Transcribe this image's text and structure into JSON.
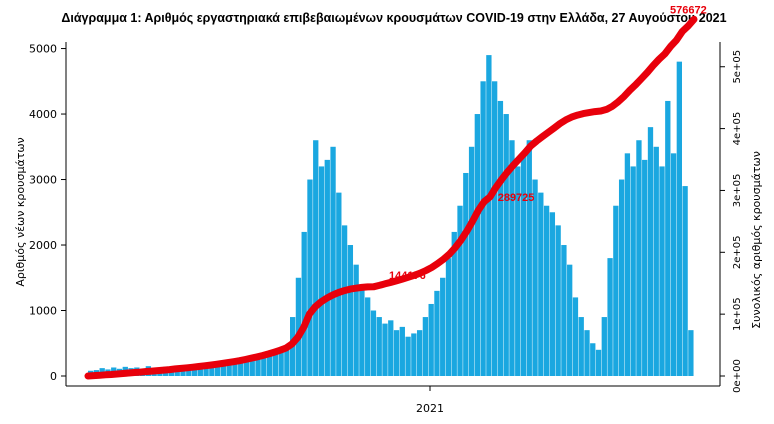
{
  "chart_data": {
    "type": "bar+line",
    "title": "Διάγραμμα 1: Αριθμός εργαστηριακά επιβεβαιωμένων κρουσμάτων COVID-19 στην Ελλάδα, 27 Αυγούστου 2021",
    "ylabel_left": "Αριθμός νέων κρουσμάτων",
    "ylabel_right": "Συνολικός αριθμός κρουσμάτων",
    "x_tick_label": "2021",
    "ylim_left": [
      0,
      5100
    ],
    "ylim_right": [
      0,
      540000
    ],
    "yticks_left": [
      "0",
      "1000",
      "2000",
      "3000",
      "4000",
      "5000"
    ],
    "yticks_right": [
      "0e+00",
      "1e+05",
      "2e+05",
      "3e+05",
      "4e+05",
      "5e+05"
    ],
    "bar_color": "#1aa7e0",
    "line_color": "#e8000b",
    "daily_new_cases": [
      80,
      90,
      120,
      100,
      130,
      110,
      140,
      120,
      130,
      110,
      150,
      120,
      130,
      140,
      120,
      150,
      130,
      140,
      160,
      150,
      170,
      160,
      180,
      190,
      200,
      220,
      230,
      250,
      280,
      300,
      320,
      350,
      380,
      420,
      470,
      900,
      1500,
      2200,
      3000,
      3600,
      3200,
      3300,
      3500,
      2800,
      2300,
      2000,
      1700,
      1400,
      1200,
      1000,
      900,
      800,
      850,
      700,
      750,
      600,
      650,
      700,
      900,
      1100,
      1300,
      1500,
      1800,
      2200,
      2600,
      3100,
      3500,
      4000,
      4500,
      4900,
      4500,
      4200,
      4000,
      3600,
      3200,
      3400,
      3600,
      3000,
      2800,
      2600,
      2500,
      2300,
      2000,
      1700,
      1200,
      900,
      700,
      500,
      400,
      900,
      1800,
      2600,
      3000,
      3400,
      3200,
      3600,
      3300,
      3800,
      3500,
      3200,
      4200,
      3400,
      4800,
      2900,
      700
    ],
    "cumulative_points": [
      {
        "label": "144176",
        "value": 144176,
        "at_bar": 52
      },
      {
        "label": "289725",
        "value": 289725,
        "at_bar": 71
      },
      {
        "label": "576672",
        "value": 576672,
        "at_bar": 104
      }
    ],
    "cumulative_curve": [
      0,
      600,
      1200,
      1900,
      2500,
      3300,
      4000,
      4800,
      5600,
      6300,
      7200,
      7900,
      8700,
      9600,
      10400,
      11400,
      12300,
      13200,
      14300,
      15300,
      16500,
      17600,
      18900,
      20200,
      21600,
      23200,
      24800,
      26600,
      28700,
      30900,
      33200,
      35800,
      38600,
      41700,
      45300,
      51800,
      62600,
      78400,
      100000,
      112000,
      120000,
      126000,
      131000,
      135000,
      138000,
      140500,
      142000,
      143200,
      144000,
      144176,
      146500,
      149000,
      151500,
      154000,
      156800,
      159700,
      162800,
      166200,
      170500,
      175600,
      181700,
      188700,
      197000,
      207300,
      219500,
      234100,
      250500,
      268000,
      282000,
      289725,
      305000,
      318000,
      330000,
      341000,
      351000,
      361000,
      372000,
      380000,
      387000,
      394000,
      401000,
      408000,
      414000,
      418500,
      421800,
      424200,
      425900,
      427400,
      428500,
      431000,
      436000,
      443500,
      452000,
      462000,
      471000,
      481000,
      491000,
      502000,
      512000,
      521000,
      533000,
      543000,
      557000,
      566000,
      576672
    ]
  }
}
